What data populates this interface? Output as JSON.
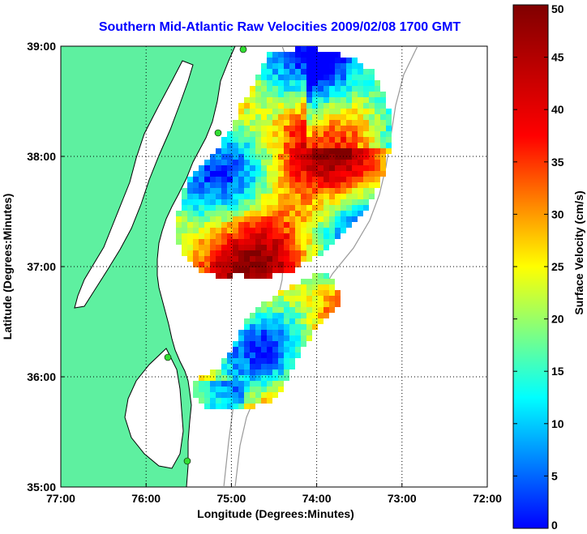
{
  "chart_data": {
    "type": "heatmap",
    "title": "Southern Mid-Atlantic Raw Velocities 2009/02/08 1700 GMT",
    "xlabel": "Longitude (Degrees:Minutes)",
    "ylabel": "Latitude (Degrees:Minutes)",
    "x_ticks": [
      "77:00",
      "76:00",
      "75:00",
      "74:00",
      "73:00",
      "72:00"
    ],
    "y_ticks": [
      "39:00",
      "38:00",
      "37:00",
      "36:00",
      "35:00"
    ],
    "xlim": [
      -77,
      -72
    ],
    "ylim": [
      35,
      39
    ],
    "grid": true,
    "colorbar": {
      "label": "Surface Velocity (cm/s)",
      "ticks": [
        "50",
        "45",
        "40",
        "35",
        "30",
        "25",
        "20",
        "15",
        "10",
        "5",
        "0"
      ],
      "range": [
        0,
        50
      ],
      "colormap": "jet"
    },
    "colors": {
      "title": "#0000ff",
      "land": "#5ef0a0",
      "coastline": "#000000",
      "bathymetry": "#999999",
      "vectors": "#000000"
    }
  }
}
